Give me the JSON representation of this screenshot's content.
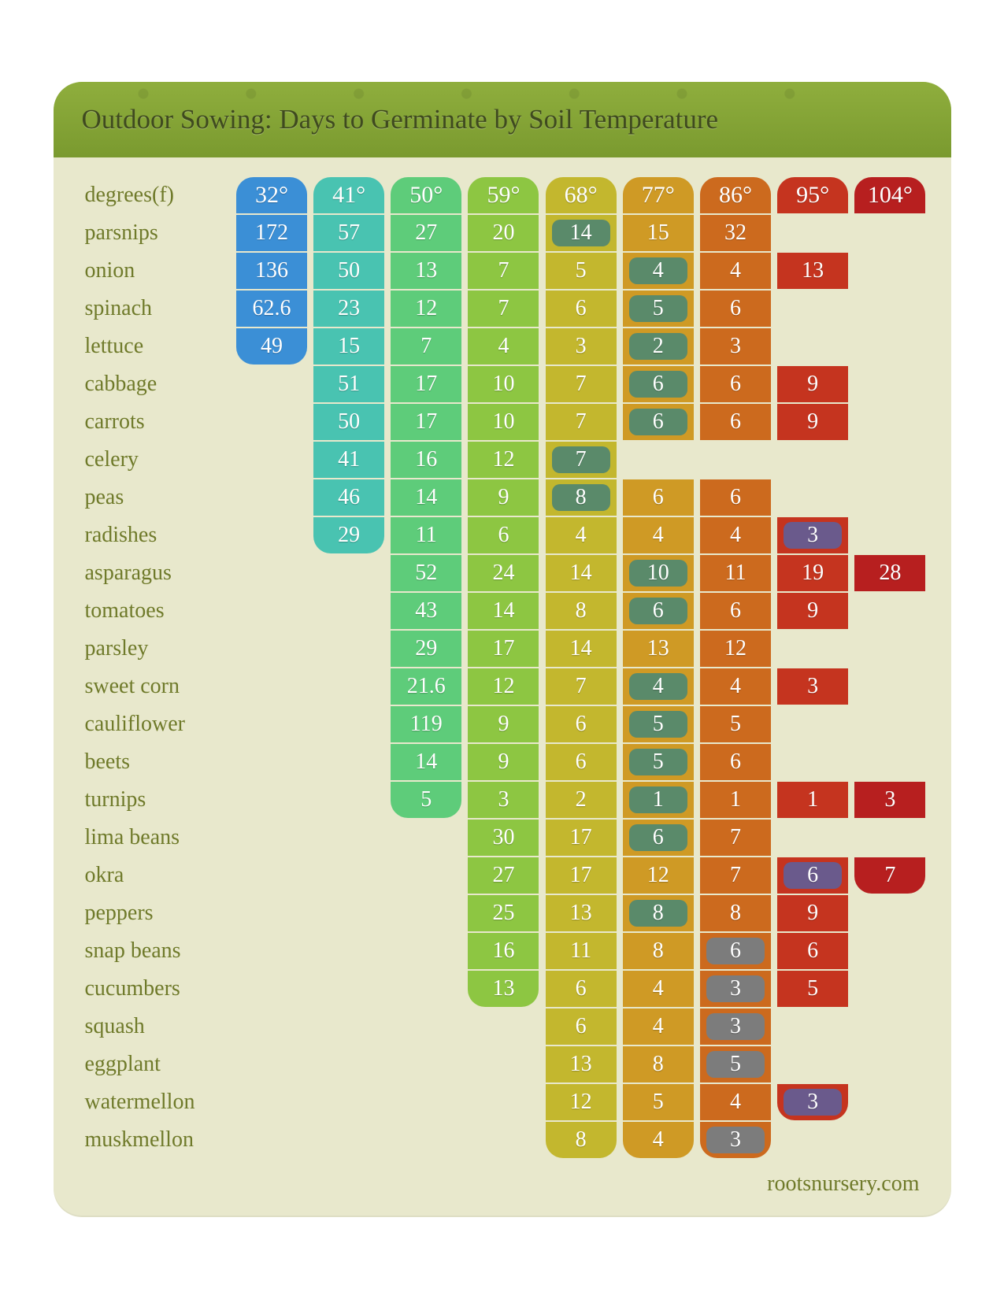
{
  "title": "Outdoor Sowing: Days to Germinate by Soil Temperature",
  "footer": "rootsnursery.com",
  "degrees_label": "degrees(f)",
  "colors": {
    "card_bg": "#e8e8cc",
    "header_top": "#8fae3d",
    "header_bot": "#7a9a2f",
    "title_color": "#3f4a1f",
    "label_color": "#6f7a2a",
    "hl_green": "#5a8a6a",
    "hl_gray": "#7c7c7c",
    "hl_purple": "#6a5a8c"
  },
  "temps": [
    "32°",
    "41°",
    "50°",
    "59°",
    "68°",
    "77°",
    "86°",
    "95°",
    "104°"
  ],
  "col_colors": [
    "#3b8fd6",
    "#49c3b1",
    "#5ecc7a",
    "#8dc642",
    "#c3b72e",
    "#cf9a25",
    "#cc6a1e",
    "#c5341f",
    "#b71f1f"
  ],
  "plants": [
    {
      "name": "parsnips",
      "vals": [
        "172",
        "57",
        "27",
        "20",
        "14",
        "15",
        "32",
        "",
        ""
      ],
      "hl": [
        null,
        null,
        null,
        null,
        "g",
        null,
        null,
        null,
        null
      ]
    },
    {
      "name": "onion",
      "vals": [
        "136",
        "50",
        "13",
        "7",
        "5",
        "4",
        "4",
        "13",
        ""
      ],
      "hl": [
        null,
        null,
        null,
        null,
        null,
        "g",
        null,
        null,
        null
      ]
    },
    {
      "name": "spinach",
      "vals": [
        "62.6",
        "23",
        "12",
        "7",
        "6",
        "5",
        "6",
        "",
        ""
      ],
      "hl": [
        null,
        null,
        null,
        null,
        null,
        "g",
        null,
        null,
        null
      ]
    },
    {
      "name": "lettuce",
      "vals": [
        "49",
        "15",
        "7",
        "4",
        "3",
        "2",
        "3",
        "",
        ""
      ],
      "hl": [
        null,
        null,
        null,
        null,
        null,
        "g",
        null,
        null,
        null
      ]
    },
    {
      "name": "cabbage",
      "vals": [
        "",
        "51",
        "17",
        "10",
        "7",
        "6",
        "6",
        "9",
        ""
      ],
      "hl": [
        null,
        null,
        null,
        null,
        null,
        "g",
        null,
        null,
        null
      ]
    },
    {
      "name": "carrots",
      "vals": [
        "",
        "50",
        "17",
        "10",
        "7",
        "6",
        "6",
        "9",
        ""
      ],
      "hl": [
        null,
        null,
        null,
        null,
        null,
        "g",
        null,
        null,
        null
      ]
    },
    {
      "name": "celery",
      "vals": [
        "",
        "41",
        "16",
        "12",
        "7",
        "",
        "",
        "",
        ""
      ],
      "hl": [
        null,
        null,
        null,
        null,
        "g",
        null,
        null,
        null,
        null
      ]
    },
    {
      "name": "peas",
      "vals": [
        "",
        "46",
        "14",
        "9",
        "8",
        "6",
        "6",
        "",
        ""
      ],
      "hl": [
        null,
        null,
        null,
        null,
        "g",
        null,
        null,
        null,
        null
      ]
    },
    {
      "name": "radishes",
      "vals": [
        "",
        "29",
        "11",
        "6",
        "4",
        "4",
        "4",
        "3",
        ""
      ],
      "hl": [
        null,
        null,
        null,
        null,
        null,
        null,
        null,
        "p",
        null
      ]
    },
    {
      "name": "asparagus",
      "vals": [
        "",
        "",
        "52",
        "24",
        "14",
        "10",
        "11",
        "19",
        "28"
      ],
      "hl": [
        null,
        null,
        null,
        null,
        null,
        "g",
        null,
        null,
        null
      ]
    },
    {
      "name": "tomatoes",
      "vals": [
        "",
        "",
        "43",
        "14",
        "8",
        "6",
        "6",
        "9",
        ""
      ],
      "hl": [
        null,
        null,
        null,
        null,
        null,
        "g",
        null,
        null,
        null
      ]
    },
    {
      "name": "parsley",
      "vals": [
        "",
        "",
        "29",
        "17",
        "14",
        "13",
        "12",
        "",
        ""
      ],
      "hl": [
        null,
        null,
        null,
        null,
        null,
        null,
        null,
        null,
        null
      ]
    },
    {
      "name": "sweet corn",
      "vals": [
        "",
        "",
        "21.6",
        "12",
        "7",
        "4",
        "4",
        "3",
        ""
      ],
      "hl": [
        null,
        null,
        null,
        null,
        null,
        "g",
        null,
        null,
        null
      ]
    },
    {
      "name": "cauliflower",
      "vals": [
        "",
        "",
        "119",
        "9",
        "6",
        "5",
        "5",
        "",
        ""
      ],
      "hl": [
        null,
        null,
        null,
        null,
        null,
        "g",
        null,
        null,
        null
      ]
    },
    {
      "name": "beets",
      "vals": [
        "",
        "",
        "14",
        "9",
        "6",
        "5",
        "6",
        "",
        ""
      ],
      "hl": [
        null,
        null,
        null,
        null,
        null,
        "g",
        null,
        null,
        null
      ]
    },
    {
      "name": "turnips",
      "vals": [
        "",
        "",
        "5",
        "3",
        "2",
        "1",
        "1",
        "1",
        "3"
      ],
      "hl": [
        null,
        null,
        null,
        null,
        null,
        "g",
        null,
        null,
        null
      ]
    },
    {
      "name": "lima beans",
      "vals": [
        "",
        "",
        "",
        "30",
        "17",
        "6",
        "7",
        "",
        ""
      ],
      "hl": [
        null,
        null,
        null,
        null,
        null,
        "g",
        null,
        null,
        null
      ]
    },
    {
      "name": "okra",
      "vals": [
        "",
        "",
        "",
        "27",
        "17",
        "12",
        "7",
        "6",
        "7"
      ],
      "hl": [
        null,
        null,
        null,
        null,
        null,
        null,
        null,
        "p",
        null
      ]
    },
    {
      "name": "peppers",
      "vals": [
        "",
        "",
        "",
        "25",
        "13",
        "8",
        "8",
        "9",
        ""
      ],
      "hl": [
        null,
        null,
        null,
        null,
        null,
        "g",
        null,
        null,
        null
      ]
    },
    {
      "name": "snap beans",
      "vals": [
        "",
        "",
        "",
        "16",
        "11",
        "8",
        "6",
        "6",
        ""
      ],
      "hl": [
        null,
        null,
        null,
        null,
        null,
        null,
        "gr",
        null,
        null
      ]
    },
    {
      "name": "cucumbers",
      "vals": [
        "",
        "",
        "",
        "13",
        "6",
        "4",
        "3",
        "5",
        ""
      ],
      "hl": [
        null,
        null,
        null,
        null,
        null,
        null,
        "gr",
        null,
        null
      ]
    },
    {
      "name": "squash",
      "vals": [
        "",
        "",
        "",
        "",
        "6",
        "4",
        "3",
        "",
        ""
      ],
      "hl": [
        null,
        null,
        null,
        null,
        null,
        null,
        "gr",
        null,
        null
      ]
    },
    {
      "name": "eggplant",
      "vals": [
        "",
        "",
        "",
        "",
        "13",
        "8",
        "5",
        "",
        ""
      ],
      "hl": [
        null,
        null,
        null,
        null,
        null,
        null,
        "gr",
        null,
        null
      ]
    },
    {
      "name": "watermellon",
      "vals": [
        "",
        "",
        "",
        "",
        "12",
        "5",
        "4",
        "3",
        ""
      ],
      "hl": [
        null,
        null,
        null,
        null,
        null,
        null,
        null,
        "p",
        null
      ]
    },
    {
      "name": "muskmellon",
      "vals": [
        "",
        "",
        "",
        "",
        "8",
        "4",
        "3",
        "",
        ""
      ],
      "hl": [
        null,
        null,
        null,
        null,
        null,
        null,
        "gr",
        null,
        null
      ]
    }
  ]
}
